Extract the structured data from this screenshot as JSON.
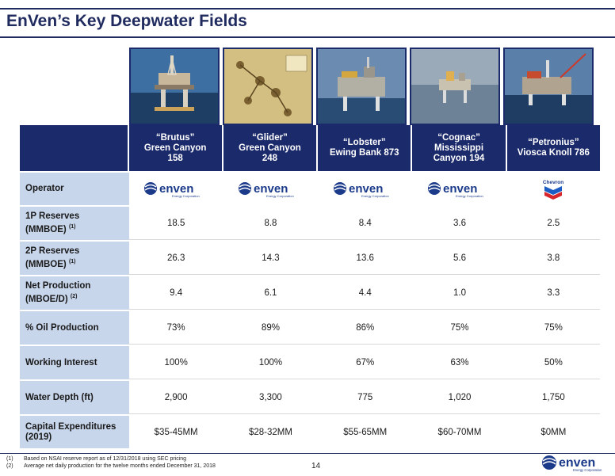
{
  "title": "EnVen’s Key Deepwater Fields",
  "fields": [
    {
      "line1": "“Brutus”",
      "line2": "Green Canyon",
      "line3": "158",
      "operator": "enven"
    },
    {
      "line1": "“Glider”",
      "line2": "Green Canyon",
      "line3": "248",
      "operator": "enven"
    },
    {
      "line1": "“Lobster”",
      "line2": "Ewing Bank 873",
      "line3": "",
      "operator": "enven"
    },
    {
      "line1": "“Cognac”",
      "line2": "Mississippi",
      "line3": "Canyon 194",
      "operator": "enven"
    },
    {
      "line1": "“Petronius”",
      "line2": "Viosca Knoll 786",
      "line3": "",
      "operator": "chevron"
    }
  ],
  "rows": {
    "operator": {
      "label": "Operator"
    },
    "p1": {
      "label_a": "1P Reserves",
      "label_b": "(MMBOE)",
      "sup": "(1)",
      "values": [
        "18.5",
        "8.8",
        "8.4",
        "3.6",
        "2.5"
      ]
    },
    "p2": {
      "label_a": "2P Reserves",
      "label_b": "(MMBOE)",
      "sup": "(1)",
      "values": [
        "26.3",
        "14.3",
        "13.6",
        "5.6",
        "3.8"
      ]
    },
    "net": {
      "label_a": "Net Production",
      "label_b": "(MBOE/D)",
      "sup": "(2)",
      "values": [
        "9.4",
        "6.1",
        "4.4",
        "1.0",
        "3.3"
      ]
    },
    "oil": {
      "label": "% Oil Production",
      "values": [
        "73%",
        "89%",
        "86%",
        "75%",
        "75%"
      ]
    },
    "wi": {
      "label": "Working Interest",
      "values": [
        "100%",
        "100%",
        "67%",
        "63%",
        "50%"
      ]
    },
    "depth": {
      "label": "Water Depth (ft)",
      "values": [
        "2,900",
        "3,300",
        "775",
        "1,020",
        "1,750"
      ]
    },
    "capex": {
      "label_a": "Capital Expenditures",
      "label_b": "(2019)",
      "values": [
        "$35-45MM",
        "$28-32MM",
        "$55-65MM",
        "$60-70MM",
        "$0MM"
      ]
    }
  },
  "logos": {
    "enven_word": "enven",
    "enven_sub": "Energy Corporation",
    "chevron_word": "Chevron"
  },
  "footnotes": [
    {
      "num": "(1)",
      "text": "Based on NSAI reserve report as of 12/31/2018 using SEC pricing"
    },
    {
      "num": "(2)",
      "text": "Average net daily production for the twelve months ended December 31, 2018"
    }
  ],
  "page_number": "14",
  "colors": {
    "navy": "#1b2a6b",
    "label_bg": "#c8d6ec",
    "enven_blue": "#1b3a8a"
  }
}
